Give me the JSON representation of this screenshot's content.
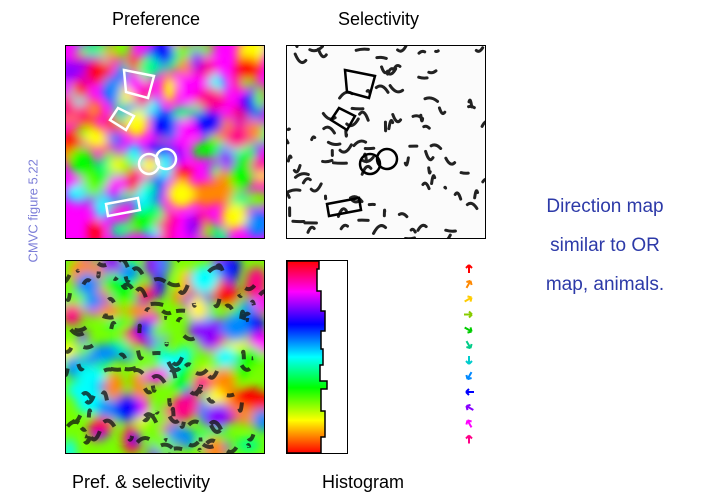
{
  "labels": {
    "preference": "Preference",
    "selectivity": "Selectivity",
    "pref_selectivity": "Pref. & selectivity",
    "histogram": "Histogram",
    "side": "CMVC figure 5.22"
  },
  "caption": {
    "line1": "Direction map",
    "line2": "similar to OR",
    "line3": "map, animals."
  },
  "colors": {
    "caption": "#2d3aa8",
    "side_label": "#7d7fd8"
  },
  "arrow_key": [
    "up",
    "up-right",
    "right-up",
    "right",
    "right-down",
    "down-right",
    "down",
    "down-left",
    "left",
    "left-up",
    "up-left",
    "up"
  ]
}
